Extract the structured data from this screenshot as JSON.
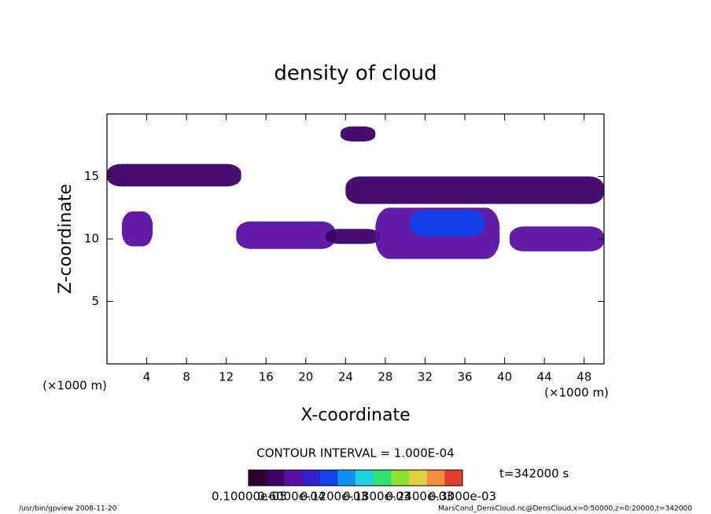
{
  "chart_data": {
    "type": "contour",
    "title": "density of cloud",
    "x_label": "X-coordinate",
    "y_label": "Z-coordinate",
    "x_unit_left": "(×1000 m)",
    "x_unit_right": "(×1000 m)",
    "xlim": [
      0,
      50
    ],
    "ylim": [
      0,
      20
    ],
    "xticks": [
      4,
      8,
      12,
      16,
      20,
      24,
      28,
      32,
      36,
      40,
      44,
      48
    ],
    "yticks": [
      5,
      10,
      15
    ],
    "contour_interval": "CONTOUR INTERVAL = 1.000E-04",
    "time_label": "t=342000 s",
    "footer_left": "/usr/bin/gpview   2008-11-20",
    "footer_right": "MarsCond_DensCloud.nc@DensCloud,x=0:50000,z=0:20000,t=342000",
    "clim": [
      0,
      0.0003
    ],
    "colormap": [
      "#2a0030",
      "#3c0066",
      "#5a10a0",
      "#3020c8",
      "#1040e8",
      "#1090f0",
      "#20d0e0",
      "#30e070",
      "#90e030",
      "#e0d040",
      "#f09040",
      "#e04030"
    ],
    "colorbar_ticks": [
      {
        "value": 1e-06,
        "label": "0.10000e-05"
      },
      {
        "value": 6e-05,
        "label": "0.6000e-04"
      },
      {
        "value": 0.00012,
        "label": "0.1200e-03"
      },
      {
        "value": 0.00018,
        "label": "0.1800e-03"
      },
      {
        "value": 0.00024,
        "label": "0.2400e-03"
      },
      {
        "value": 0.0003,
        "label": "0.3000e-03"
      }
    ],
    "cells": [
      {
        "x": [
          0,
          13.5
        ],
        "z": [
          14.2,
          16
        ],
        "value": 3e-05
      },
      {
        "x": [
          23.5,
          27
        ],
        "z": [
          17.8,
          19
        ],
        "value": 3e-05
      },
      {
        "x": [
          24,
          50
        ],
        "z": [
          12.8,
          15
        ],
        "value": 3e-05
      },
      {
        "x": [
          1.5,
          4.6
        ],
        "z": [
          9.4,
          12.2
        ],
        "value": 6e-05
      },
      {
        "x": [
          13,
          23
        ],
        "z": [
          9.2,
          11.4
        ],
        "value": 5e-05
      },
      {
        "x": [
          22,
          27.5
        ],
        "z": [
          9.6,
          10.8
        ],
        "value": 3e-05
      },
      {
        "x": [
          27,
          39.5
        ],
        "z": [
          8.4,
          12.5
        ],
        "value": 7e-05
      },
      {
        "x": [
          30.5,
          38
        ],
        "z": [
          10.2,
          12.3
        ],
        "value": 0.00011
      },
      {
        "x": [
          40.5,
          50
        ],
        "z": [
          9,
          11
        ],
        "value": 5e-05
      }
    ]
  }
}
